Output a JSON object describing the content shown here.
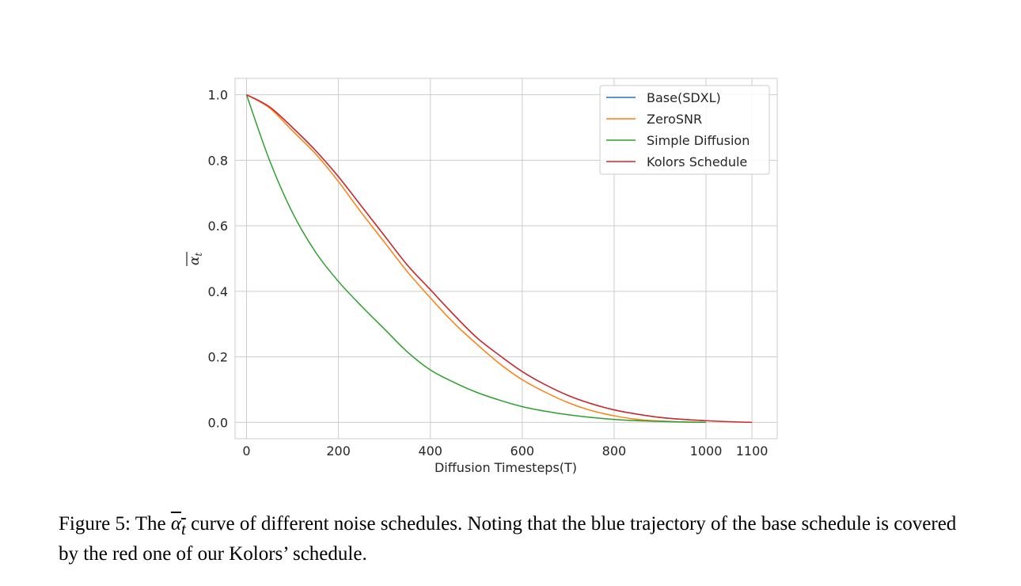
{
  "chart_data": {
    "type": "line",
    "xlabel": "Diffusion Timesteps(T)",
    "ylabel_symbol": "α",
    "ylabel_subscript": "t",
    "xlim": [
      -25,
      1155
    ],
    "ylim": [
      -0.05,
      1.05
    ],
    "x_ticks": [
      0,
      200,
      400,
      600,
      800,
      1000,
      1100
    ],
    "y_ticks": [
      0.0,
      0.2,
      0.4,
      0.6,
      0.8,
      1.0
    ],
    "x_tick_labels": [
      "0",
      "200",
      "400",
      "600",
      "800",
      "1000",
      "1100"
    ],
    "y_tick_labels": [
      "0.0",
      "0.2",
      "0.4",
      "0.6",
      "0.8",
      "1.0"
    ],
    "grid": true,
    "legend_position": "top-right",
    "series": [
      {
        "name": "Base(SDXL)",
        "color": "#1f77b4",
        "x": [
          0,
          50,
          100,
          150,
          200,
          250,
          300,
          350,
          400,
          450,
          500,
          550,
          600,
          650,
          700,
          750,
          800,
          850,
          900,
          950,
          1000
        ],
        "y": [
          1.0,
          0.963,
          0.9,
          0.83,
          0.75,
          0.66,
          0.57,
          0.48,
          0.405,
          0.33,
          0.26,
          0.205,
          0.155,
          0.115,
          0.082,
          0.057,
          0.038,
          0.025,
          0.015,
          0.009,
          0.005
        ]
      },
      {
        "name": "ZeroSNR",
        "color": "#ff7f0e",
        "x": [
          0,
          50,
          100,
          150,
          200,
          250,
          300,
          350,
          400,
          450,
          500,
          550,
          600,
          650,
          700,
          750,
          800,
          850,
          900,
          950,
          1000
        ],
        "y": [
          1.0,
          0.96,
          0.89,
          0.82,
          0.735,
          0.64,
          0.55,
          0.46,
          0.38,
          0.305,
          0.24,
          0.18,
          0.13,
          0.092,
          0.06,
          0.036,
          0.02,
          0.009,
          0.004,
          0.001,
          0.0
        ]
      },
      {
        "name": "Simple Diffusion",
        "color": "#2ca02c",
        "x": [
          0,
          50,
          100,
          150,
          200,
          250,
          300,
          350,
          400,
          450,
          500,
          550,
          600,
          650,
          700,
          750,
          800,
          850,
          900,
          950,
          1000
        ],
        "y": [
          1.0,
          0.8,
          0.64,
          0.52,
          0.43,
          0.355,
          0.285,
          0.215,
          0.16,
          0.123,
          0.092,
          0.068,
          0.048,
          0.034,
          0.023,
          0.015,
          0.009,
          0.005,
          0.003,
          0.001,
          0.0
        ]
      },
      {
        "name": "Kolors Schedule",
        "color": "#d62728",
        "x": [
          0,
          50,
          100,
          150,
          200,
          250,
          300,
          350,
          400,
          450,
          500,
          550,
          600,
          650,
          700,
          750,
          800,
          850,
          900,
          950,
          1000,
          1050,
          1100
        ],
        "y": [
          1.0,
          0.963,
          0.9,
          0.83,
          0.75,
          0.66,
          0.57,
          0.48,
          0.405,
          0.33,
          0.26,
          0.205,
          0.155,
          0.115,
          0.082,
          0.057,
          0.038,
          0.025,
          0.015,
          0.009,
          0.005,
          0.002,
          0.0
        ]
      }
    ]
  },
  "caption": {
    "prefix": "Figure 5: The ",
    "symbol": "α",
    "subscript": "t",
    "rest": " curve of different noise schedules. Noting that the blue trajectory of the base schedule is covered by the red one of our Kolors’ schedule."
  }
}
